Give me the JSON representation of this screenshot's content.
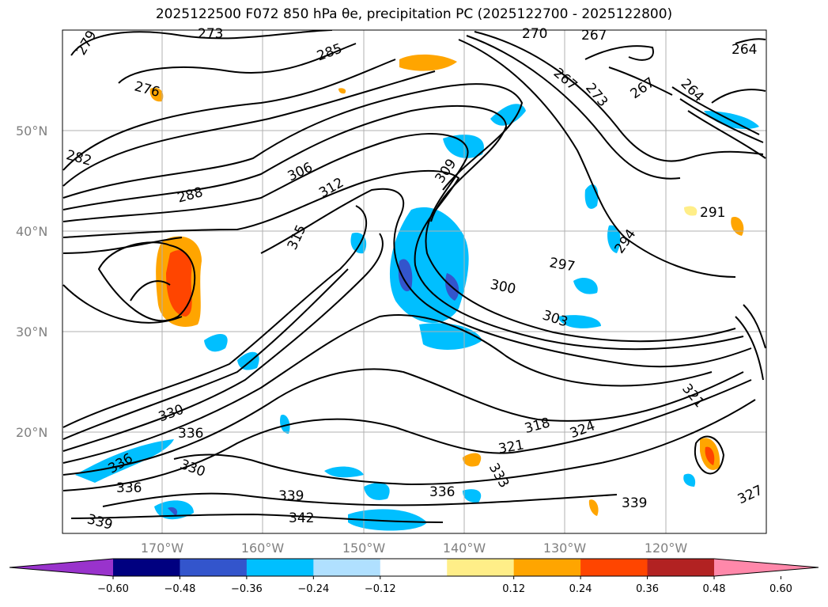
{
  "chart_data": {
    "type": "contour-map",
    "title": "2025122500 F072 850 hPa θe, precipitation PC (2025122700 - 2025122800)",
    "lat_ticks": [
      "50°N",
      "40°N",
      "30°N",
      "20°N"
    ],
    "lon_ticks": [
      "170°W",
      "160°W",
      "150°W",
      "140°W",
      "130°W",
      "120°W"
    ],
    "contour_labels": [
      "279",
      "273",
      "285",
      "270",
      "267",
      "264",
      "276",
      "267",
      "273",
      "267",
      "264",
      "282",
      "306",
      "309",
      "312",
      "288",
      "315",
      "291",
      "294",
      "297",
      "300",
      "303",
      "330",
      "336",
      "318",
      "324",
      "321",
      "321",
      "336",
      "330",
      "333",
      "339",
      "336",
      "339",
      "339",
      "342",
      "327"
    ],
    "colorbar": {
      "ticks": [
        "−0.60",
        "−0.48",
        "−0.36",
        "−0.24",
        "−0.12",
        "0.12",
        "0.24",
        "0.36",
        "0.48",
        "0.60"
      ],
      "colors": [
        "#9933cc",
        "#000080",
        "#3355cc",
        "#00bfff",
        "#b0e0ff",
        "#ffffff",
        "#ffee88",
        "#ffa500",
        "#ff4500",
        "#b22222",
        "#ff88aa"
      ]
    }
  }
}
